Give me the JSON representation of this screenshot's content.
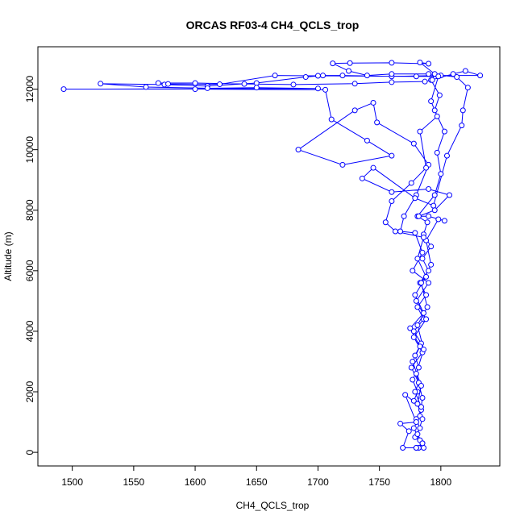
{
  "chart_data": {
    "type": "line",
    "title": "ORCAS RF03-4 CH4_QCLS_trop",
    "xlabel": "CH4_QCLS_trop",
    "ylabel": "Altitude (m)",
    "color": "#0000ff",
    "marker": "open-circle",
    "x": [
      1782,
      1785,
      1779,
      1783,
      1780,
      1784,
      1778,
      1781,
      1777,
      1782,
      1779,
      1784,
      1778,
      1786,
      1781,
      1788,
      1783,
      1790,
      1785,
      1792,
      1786,
      1789,
      1781,
      1795,
      1800,
      1797,
      1803,
      1795,
      1799,
      1792,
      1810,
      1820,
      1832,
      1800,
      1760,
      1720,
      1704,
      1690,
      1650,
      1610,
      1575,
      1523,
      1560,
      1610,
      1650,
      1700,
      1493,
      1600,
      1706,
      1711,
      1740,
      1760,
      1720,
      1684,
      1730,
      1745,
      1748,
      1778,
      1790,
      1780,
      1770,
      1767,
      1779,
      1785,
      1777,
      1790,
      1780,
      1788,
      1778,
      1785,
      1776,
      1782,
      1779,
      1784,
      1771,
      1780,
      1767,
      1774,
      1769,
      1780,
      1786,
      1783,
      1778,
      1783,
      1785,
      1780,
      1786,
      1781,
      1789,
      1784,
      1792,
      1788,
      1798,
      1803,
      1790,
      1782,
      1795,
      1807,
      1790,
      1760,
      1736,
      1745,
      1779,
      1794,
      1805,
      1817,
      1818,
      1822,
      1813,
      1790,
      1760,
      1740,
      1725,
      1712,
      1726,
      1760,
      1790,
      1783,
      1795,
      1793,
      1787,
      1760,
      1730,
      1680,
      1640,
      1600,
      1570,
      1578,
      1620,
      1665,
      1700,
      1780,
      1798,
      1792,
      1797,
      1783,
      1788,
      1776,
      1760,
      1755,
      1763,
      1786,
      1781,
      1788,
      1779,
      1786,
      1775,
      1783,
      1777,
      1784,
      1781,
      1785,
      1781,
      1785,
      1780
    ],
    "values": [
      150,
      300,
      500,
      800,
      1100,
      1400,
      1700,
      2000,
      2400,
      2800,
      3200,
      3600,
      4000,
      4400,
      4800,
      5200,
      5600,
      6000,
      6400,
      6800,
      7200,
      7600,
      7800,
      8500,
      9200,
      9900,
      10600,
      11300,
      11800,
      12300,
      12500,
      12600,
      12450,
      12450,
      12420,
      12450,
      12450,
      12400,
      12200,
      12100,
      12150,
      12180,
      12070,
      12030,
      12050,
      12020,
      12000,
      12000,
      11980,
      11000,
      10300,
      9800,
      9500,
      10000,
      11300,
      11550,
      10900,
      10200,
      9500,
      8500,
      7800,
      7300,
      7250,
      6600,
      6000,
      5600,
      5000,
      4400,
      3800,
      3300,
      2800,
      2300,
      2000,
      1500,
      1900,
      1000,
      950,
      700,
      150,
      150,
      150,
      400,
      800,
      1200,
      1800,
      2600,
      3400,
      4200,
      4800,
      5600,
      6200,
      7000,
      7700,
      7650,
      7800,
      7800,
      8000,
      8500,
      8700,
      8600,
      9050,
      9400,
      8400,
      8150,
      9800,
      10800,
      11300,
      12050,
      12400,
      12500,
      12500,
      12450,
      12600,
      12850,
      12860,
      12870,
      12840,
      12880,
      12500,
      12300,
      12250,
      12230,
      12180,
      12150,
      12170,
      12200,
      12200,
      12170,
      12160,
      12450,
      12440,
      12420,
      12420,
      11600,
      11100,
      10600,
      9400,
      8900,
      8300,
      7600,
      7300,
      7100,
      6400,
      5800,
      5200,
      4600,
      4100,
      3500,
      3000,
      2200,
      1600,
      1100,
      600,
      300,
      150
    ],
    "xlim": [
      1472,
      1848
    ],
    "ylim": [
      -450,
      13400
    ],
    "xticks": [
      1500,
      1550,
      1600,
      1650,
      1700,
      1750,
      1800
    ],
    "yticks": [
      0,
      2000,
      4000,
      6000,
      8000,
      10000,
      12000
    ]
  }
}
